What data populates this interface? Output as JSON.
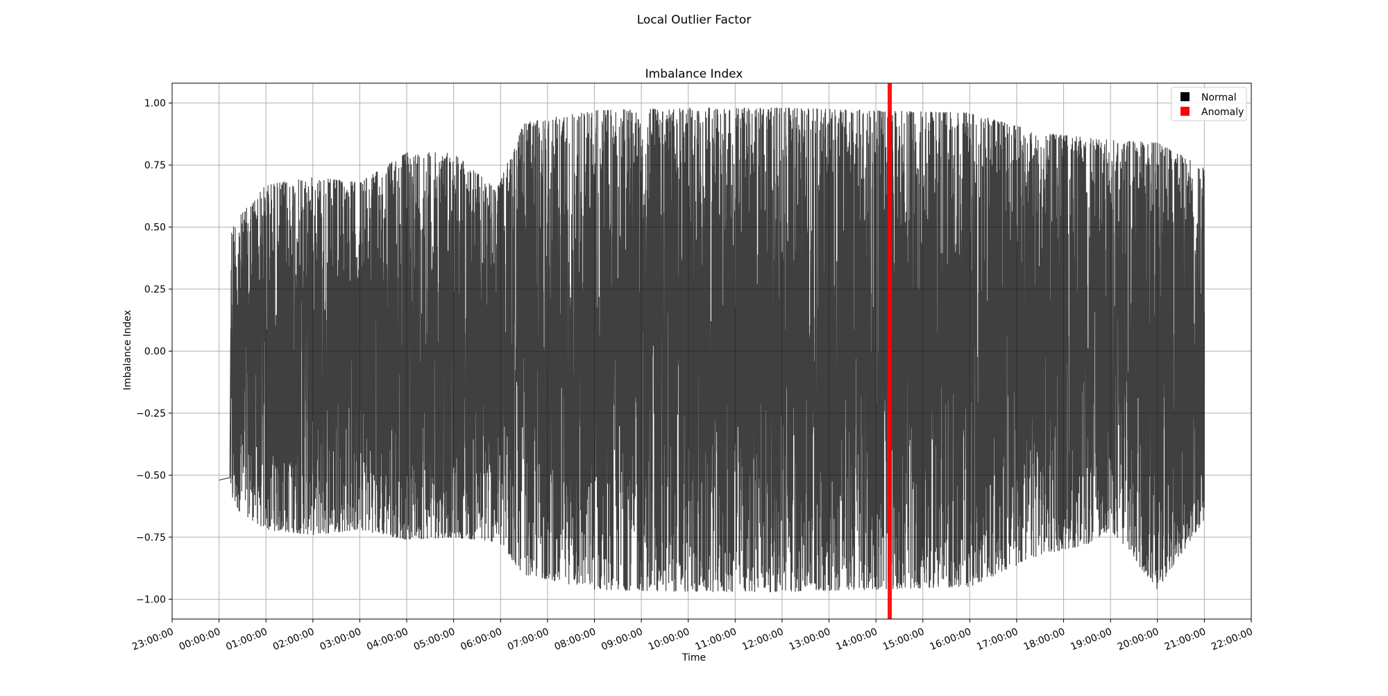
{
  "figure": {
    "suptitle": "Local Outlier Factor"
  },
  "chart_data": {
    "type": "line",
    "title": "Imbalance Index",
    "xlabel": "Time",
    "ylabel": "Imbalance Index",
    "ylim": [
      -1.08,
      1.08
    ],
    "xlim": [
      "23:00:00",
      "22:00:00"
    ],
    "x_ticks": [
      "23:00:00",
      "00:00:00",
      "01:00:00",
      "02:00:00",
      "03:00:00",
      "04:00:00",
      "05:00:00",
      "06:00:00",
      "07:00:00",
      "08:00:00",
      "09:00:00",
      "10:00:00",
      "11:00:00",
      "12:00:00",
      "13:00:00",
      "14:00:00",
      "15:00:00",
      "16:00:00",
      "17:00:00",
      "18:00:00",
      "19:00:00",
      "20:00:00",
      "21:00:00",
      "22:00:00"
    ],
    "y_ticks": [
      "1.00",
      "0.75",
      "0.50",
      "0.25",
      "0.00",
      "−0.25",
      "−0.50",
      "−0.75",
      "−1.00"
    ],
    "grid": true,
    "legend": {
      "placement": "upper-right",
      "entries": [
        {
          "label": "Normal",
          "color": "#000000"
        },
        {
          "label": "Anomaly",
          "color": "#ff0000"
        }
      ]
    },
    "series": [
      {
        "name": "Normal",
        "color": "#000000",
        "start": {
          "time": "00:00:00",
          "value": -0.52
        },
        "envelope": [
          {
            "time": "00:15:00",
            "upper": 0.5,
            "lower": -0.62
          },
          {
            "time": "01:00:00",
            "upper": 0.67,
            "lower": -0.72
          },
          {
            "time": "02:00:00",
            "upper": 0.7,
            "lower": -0.74
          },
          {
            "time": "03:00:00",
            "upper": 0.68,
            "lower": -0.72
          },
          {
            "time": "04:00:00",
            "upper": 0.8,
            "lower": -0.76
          },
          {
            "time": "05:00:00",
            "upper": 0.8,
            "lower": -0.75
          },
          {
            "time": "05:55:00",
            "upper": 0.65,
            "lower": -0.77
          },
          {
            "time": "06:30:00",
            "upper": 0.92,
            "lower": -0.9
          },
          {
            "time": "08:00:00",
            "upper": 0.97,
            "lower": -0.96
          },
          {
            "time": "10:00:00",
            "upper": 0.98,
            "lower": -0.97
          },
          {
            "time": "12:00:00",
            "upper": 0.98,
            "lower": -0.97
          },
          {
            "time": "14:00:00",
            "upper": 0.97,
            "lower": -0.96
          },
          {
            "time": "16:00:00",
            "upper": 0.96,
            "lower": -0.95
          },
          {
            "time": "17:30:00",
            "upper": 0.88,
            "lower": -0.82
          },
          {
            "time": "18:30:00",
            "upper": 0.86,
            "lower": -0.78
          },
          {
            "time": "19:00:00",
            "upper": 0.85,
            "lower": -0.72
          },
          {
            "time": "20:00:00",
            "upper": 0.84,
            "lower": -0.96
          },
          {
            "time": "21:00:00",
            "upper": 0.74,
            "lower": -0.68
          }
        ]
      },
      {
        "name": "Anomaly",
        "color": "#ff0000",
        "band": {
          "start": "14:15:00",
          "end": "14:20:00"
        }
      }
    ]
  }
}
